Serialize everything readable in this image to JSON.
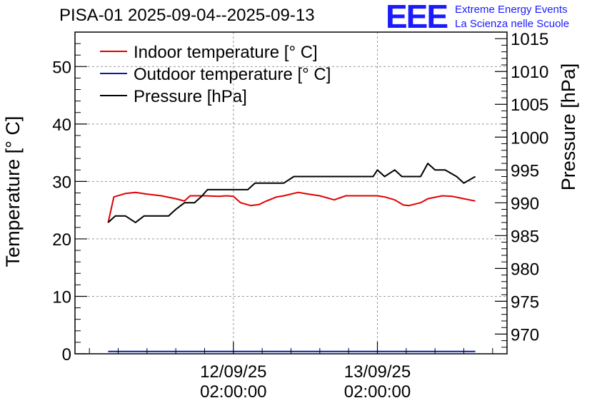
{
  "chart_data": {
    "type": "line",
    "title": "PISA-01 2025-09-04--2025-09-13",
    "logo": {
      "text": "EEE",
      "line1": "Extreme Energy Events",
      "line2": "La Scienza nelle Scuole"
    },
    "ylabel_left": "Temperature [° C]",
    "ylabel_right": "Pressure [hPa]",
    "ylim_left": [
      0,
      56
    ],
    "ylim_right": [
      967,
      1016
    ],
    "yticks_left": [
      "0",
      "10",
      "20",
      "30",
      "40",
      "50"
    ],
    "yticks_right": [
      "970",
      "975",
      "980",
      "985",
      "990",
      "995",
      "1000",
      "1005",
      "1010",
      "1015"
    ],
    "xlim": [
      10.9,
      13.9
    ],
    "xticks": [
      {
        "value": 12.0,
        "date": "12/09/25",
        "time": "02:00:00"
      },
      {
        "value": 13.0,
        "date": "13/09/25",
        "time": "02:00:00"
      }
    ],
    "grid": true,
    "legend_position": "top-left",
    "series": [
      {
        "name": "Indoor temperature [° C]",
        "color": "#e00000",
        "axis": "left",
        "x": [
          11.13,
          11.17,
          11.25,
          11.32,
          11.4,
          11.5,
          11.6,
          11.66,
          11.7,
          11.8,
          11.9,
          11.95,
          12.0,
          12.05,
          12.12,
          12.18,
          12.22,
          12.3,
          12.35,
          12.45,
          12.52,
          12.6,
          12.7,
          12.78,
          12.82,
          12.9,
          13.0,
          13.05,
          13.12,
          13.18,
          13.22,
          13.3,
          13.35,
          13.45,
          13.52,
          13.6,
          13.68
        ],
        "values": [
          22.8,
          27.3,
          27.9,
          28.1,
          27.8,
          27.5,
          27.0,
          26.6,
          27.5,
          27.5,
          27.4,
          27.5,
          27.4,
          26.3,
          25.8,
          26.0,
          26.5,
          27.3,
          27.5,
          28.1,
          27.8,
          27.5,
          26.8,
          27.5,
          27.5,
          27.5,
          27.5,
          27.3,
          26.8,
          25.9,
          25.8,
          26.3,
          27.0,
          27.5,
          27.4,
          27.0,
          26.6
        ]
      },
      {
        "name": "Outdoor temperature [° C]",
        "color": "#0a18a8",
        "axis": "left",
        "x": [
          11.13,
          13.68
        ],
        "values": [
          0.4,
          0.4
        ]
      },
      {
        "name": "Pressure [hPa]",
        "color": "#000000",
        "axis": "right",
        "x": [
          11.13,
          11.18,
          11.25,
          11.32,
          11.38,
          11.5,
          11.55,
          11.6,
          11.66,
          11.73,
          11.78,
          11.82,
          11.88,
          12.0,
          12.03,
          12.1,
          12.15,
          12.2,
          12.3,
          12.35,
          12.42,
          12.48,
          12.58,
          12.7,
          12.8,
          12.85,
          12.9,
          12.97,
          13.0,
          13.05,
          13.12,
          13.17,
          13.25,
          13.3,
          13.35,
          13.4,
          13.47,
          13.55,
          13.6,
          13.68
        ],
        "values": [
          987,
          988,
          988,
          987,
          988,
          988,
          988,
          989,
          990,
          990,
          991,
          992,
          992,
          992,
          992,
          992,
          993,
          993,
          993,
          993,
          994,
          994,
          994,
          994,
          994,
          994,
          994,
          994,
          995,
          994,
          995,
          994,
          994,
          994,
          996,
          995,
          995,
          994,
          993,
          994
        ]
      }
    ]
  }
}
